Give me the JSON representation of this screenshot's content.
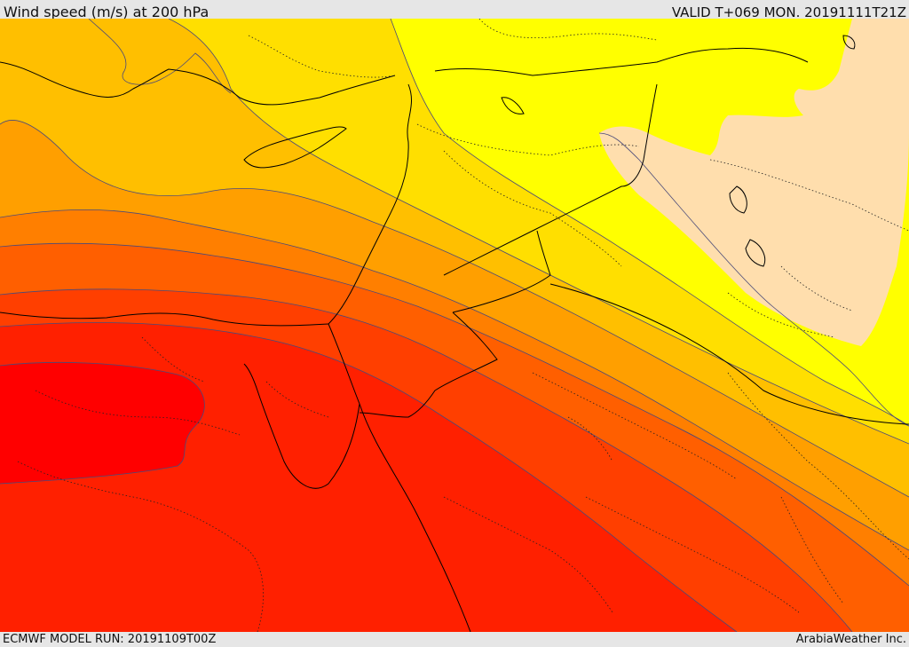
{
  "header": {
    "title": "Wind speed (m/s) at 200 hPa",
    "valid": "VALID T+069 MON. 20191111T21Z"
  },
  "footer": {
    "model_run": "ECMWF MODEL RUN: 20191109T00Z",
    "credit": "ArabiaWeather Inc."
  },
  "map": {
    "product": "wind-speed-200hPa-shaded",
    "colors": {
      "weakest": "#ffdead",
      "band_1": "#ffff00",
      "band_2": "#ffdf00",
      "band_3": "#ffbf00",
      "band_4": "#ff9f00",
      "band_5": "#ff7f00",
      "band_6": "#ff5f00",
      "band_7": "#ff3f00",
      "band_8": "#ff2000",
      "strongest": "#ff0000",
      "contour_line": "#4a4a7a",
      "border_line": "#000000"
    }
  }
}
